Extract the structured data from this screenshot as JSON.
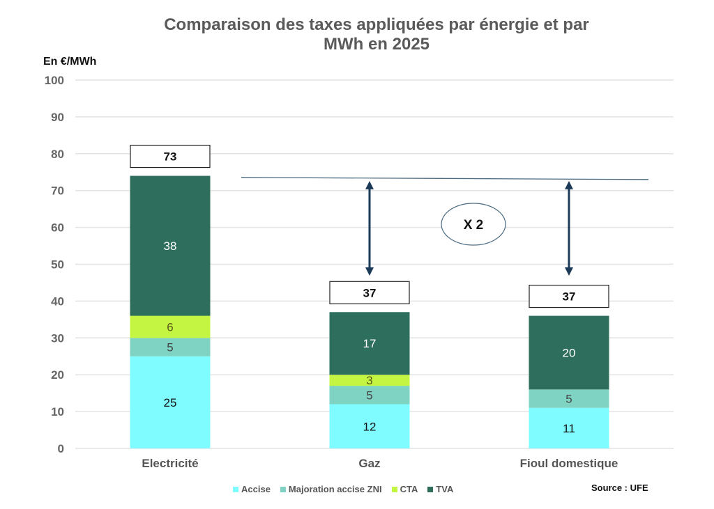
{
  "chart_data": {
    "type": "bar",
    "stacked": true,
    "title": "Comparaison des taxes appliquées par énergie et par MWh en 2025",
    "title_lines": [
      "Comparaison des taxes appliquées par énergie et par",
      "MWh en 2025"
    ],
    "ylabel": "En €/MWh",
    "xlabel": "",
    "ylim": [
      0,
      100
    ],
    "yticks": [
      0,
      10,
      20,
      30,
      40,
      50,
      60,
      70,
      80,
      90,
      100
    ],
    "grid": true,
    "categories": [
      "Electricité",
      "Gaz",
      "Fioul domestique"
    ],
    "series": [
      {
        "name": "Accise",
        "color": "#7ffcff",
        "label_color": "#111111",
        "values": [
          25,
          12,
          11
        ]
      },
      {
        "name": "Majoration accise ZNI",
        "color": "#7fd3c2",
        "label_color": "#444444",
        "values": [
          5,
          5,
          5
        ]
      },
      {
        "name": "CTA",
        "color": "#c4f542",
        "label_color": "#5a5a1a",
        "values": [
          6,
          3,
          0
        ]
      },
      {
        "name": "TVA",
        "color": "#2e6e5c",
        "label_color": "#ffffff",
        "values": [
          38,
          17,
          20
        ]
      }
    ],
    "totals": [
      "73",
      "37",
      "37"
    ],
    "annotation": {
      "text": "X 2",
      "reference_value": 73
    },
    "legend_position": "bottom",
    "source": "Source : UFE"
  },
  "colors": {
    "title": "#5a5a5a",
    "grid": "#e3e3e3",
    "arrow": "#1b3a57",
    "axis_text": "#666666"
  }
}
